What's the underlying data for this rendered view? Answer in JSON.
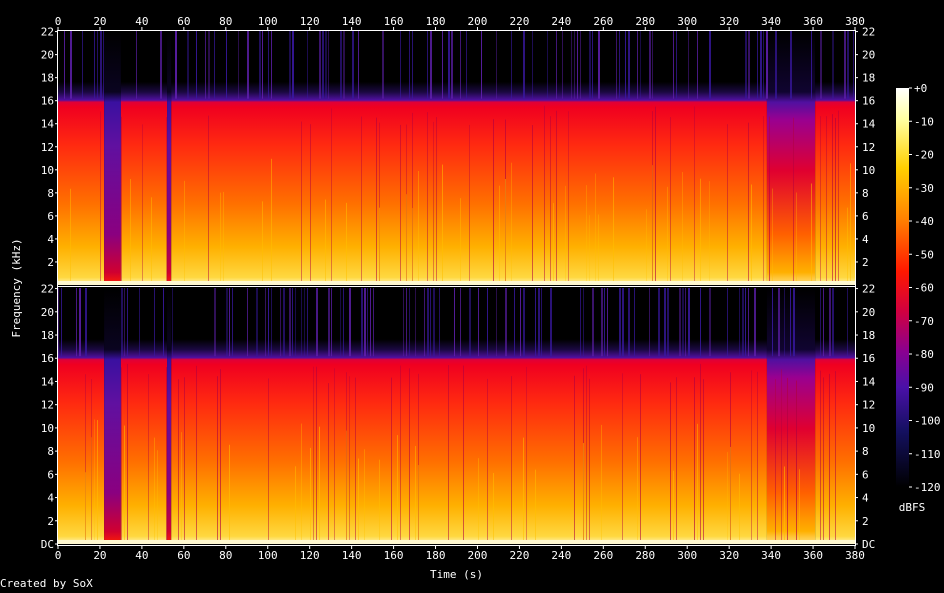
{
  "chart_data": {
    "type": "heatmap",
    "credit": "Created by SoX",
    "xlabel": "Time (s)",
    "ylabel": "Frequency (kHz)",
    "colorbar_label": "dBFS",
    "xlim": [
      0,
      380
    ],
    "x_ticks": [
      "0",
      "20",
      "40",
      "60",
      "80",
      "100",
      "120",
      "140",
      "160",
      "180",
      "200",
      "220",
      "240",
      "260",
      "280",
      "300",
      "320",
      "340",
      "360",
      "380"
    ],
    "channels": [
      {
        "y_ticks": [
          "2",
          "4",
          "6",
          "8",
          "10",
          "12",
          "14",
          "16",
          "18",
          "20",
          "22"
        ],
        "ylim_khz": [
          0,
          22.05
        ]
      },
      {
        "y_ticks": [
          "DC",
          "2",
          "4",
          "6",
          "8",
          "10",
          "12",
          "14",
          "16",
          "18",
          "20",
          "22"
        ],
        "ylim_khz": [
          0,
          22.05
        ]
      }
    ],
    "colorbar_ticks": [
      "+0",
      "-10",
      "-20",
      "-30",
      "-40",
      "-50",
      "-60",
      "-70",
      "-80",
      "-90",
      "-100",
      "-110",
      "-120"
    ],
    "colorbar_range_db": [
      -120,
      0
    ],
    "lowpass_cutoff_khz": 16,
    "segments": [
      {
        "t_start": 0,
        "t_end": 22,
        "level": "loud"
      },
      {
        "t_start": 22,
        "t_end": 30,
        "level": "quiet"
      },
      {
        "t_start": 30,
        "t_end": 52,
        "level": "loud"
      },
      {
        "t_start": 52,
        "t_end": 54,
        "level": "quiet"
      },
      {
        "t_start": 54,
        "t_end": 338,
        "level": "loud"
      },
      {
        "t_start": 338,
        "t_end": 361,
        "level": "medium"
      },
      {
        "t_start": 361,
        "t_end": 380,
        "level": "loud"
      }
    ]
  }
}
